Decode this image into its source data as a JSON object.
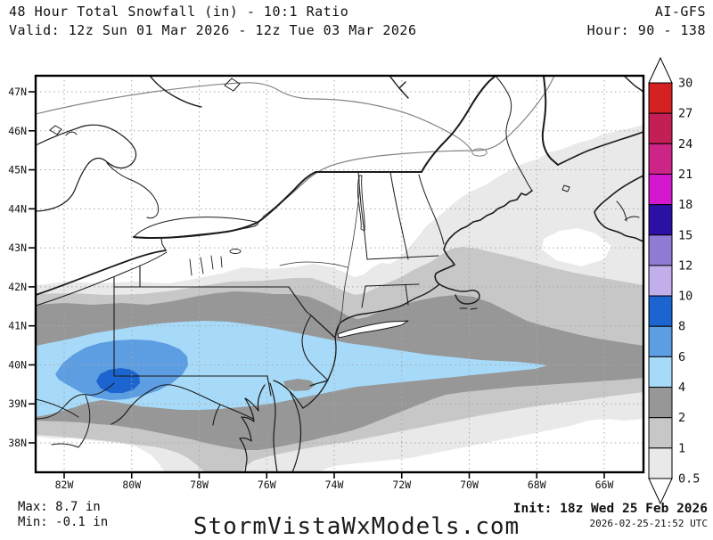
{
  "header": {
    "title": "48 Hour Total Snowfall (in) - 10:1 Ratio",
    "model": "AI-GFS",
    "valid": "Valid: 12z Sun 01 Mar 2026 - 12z Tue 03 Mar 2026",
    "hour": "Hour: 90 - 138"
  },
  "footer": {
    "max": "Max: 8.7 in",
    "min": "Min: -0.1 in",
    "site": "StormVistaWxModels.com",
    "init": "Init: 18z Wed 25 Feb 2026",
    "init_utc": "2026-02-25-21:52 UTC"
  },
  "map": {
    "lat_ticks": [
      "47N",
      "46N",
      "45N",
      "44N",
      "43N",
      "42N",
      "41N",
      "40N",
      "39N",
      "38N"
    ],
    "lon_ticks": [
      "82W",
      "80W",
      "78W",
      "76W",
      "74W",
      "72W",
      "70W",
      "68W",
      "66W"
    ]
  },
  "colorbar": {
    "unit": "in",
    "labels_top_to_bottom": [
      "30",
      "27",
      "24",
      "21",
      "18",
      "15",
      "12",
      "10",
      "8",
      "6",
      "4",
      "2",
      "1",
      "0.5"
    ],
    "cell_colors_top_to_bottom": [
      "#d42222",
      "#c41f54",
      "#cc2487",
      "#d517cf",
      "#2c0fa5",
      "#8f7bd4",
      "#c2aeea",
      "#1c64cf",
      "#5d9de2",
      "#a6daf8",
      "#979797",
      "#c7c7c7",
      "#e9e9e9"
    ]
  },
  "colors": {
    "band_0p5": "#e9e9e9",
    "band_1": "#c7c7c7",
    "band_2": "#979797",
    "band_4": "#a6daf8",
    "band_6": "#5d9de2",
    "band_8": "#1c64cf",
    "grid": "#a8a8a8",
    "water_line": "#1a1a1a",
    "river_gray": "#848484"
  },
  "chart_data": {
    "type": "filled-contour-map",
    "title": "48 Hour Total Snowfall (in) - 10:1 Ratio",
    "model": "AI-GFS",
    "valid_period": "12z Sun 01 Mar 2026 - 12z Tue 03 Mar 2026",
    "forecast_hours": "90 - 138",
    "init": "18z Wed 25 Feb 2026",
    "max_value_in": 8.7,
    "min_value_in": -0.1,
    "contour_levels_in": [
      0.5,
      1,
      2,
      4,
      6,
      8,
      10,
      12,
      15,
      18,
      21,
      24,
      27,
      30
    ],
    "lat_range": [
      "38N",
      "47N"
    ],
    "lon_range": [
      "82W",
      "66W"
    ],
    "notes_visible_pattern": "Gray 0.5-4in band from MD/PA northeast through New England and Nova Scotia; blue 4-6in band across central PA to NJ coast and offshore to ~67W near 40N; 6-8in oval over southwest PA; 8-10in maximum near 80W/40N"
  }
}
